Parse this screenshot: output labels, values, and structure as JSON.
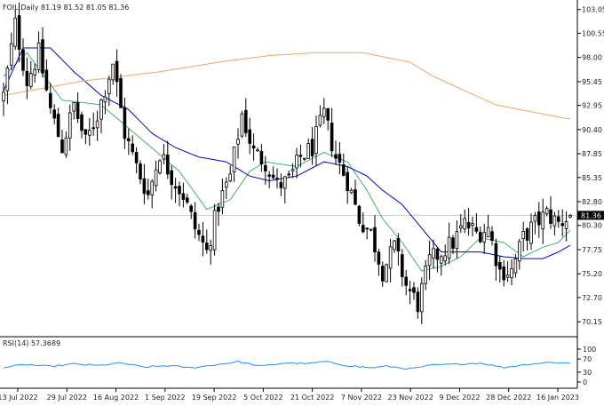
{
  "chart_data": {
    "type": "candlestick",
    "symbol": "FOIL",
    "timeframe": "Daily",
    "ohlc_header": {
      "open": "81.19",
      "high": "81.52",
      "low": "81.05",
      "close": "81.36"
    },
    "header_text": "FOIL,Daily  81.19 81.52 81.05 81.36",
    "last_price_label": "81.36",
    "price_axis": {
      "ticks": [
        "103.05",
        "100.55",
        "98.00",
        "95.45",
        "92.95",
        "90.40",
        "87.85",
        "85.35",
        "82.80",
        "80.30",
        "77.75",
        "75.20",
        "72.70",
        "70.15"
      ],
      "range": [
        69.6,
        103.4
      ]
    },
    "date_axis": {
      "ticks": [
        "13 Jul 2022",
        "29 Jul 2022",
        "16 Aug 2022",
        "1 Sep 2022",
        "19 Sep 2022",
        "5 Oct 2022",
        "21 Oct 2022",
        "7 Nov 2022",
        "23 Nov 2022",
        "9 Dec 2022",
        "28 Dec 2022",
        "16 Jan 2023"
      ]
    },
    "price_anchors": [
      [
        0,
        94.0
      ],
      [
        3,
        101.5
      ],
      [
        6,
        95.5
      ],
      [
        9,
        98.5
      ],
      [
        12,
        92.5
      ],
      [
        15,
        88.5
      ],
      [
        18,
        93.0
      ],
      [
        21,
        89.0
      ],
      [
        24,
        92.0
      ],
      [
        28,
        97.5
      ],
      [
        31,
        90.0
      ],
      [
        34,
        86.5
      ],
      [
        37,
        83.5
      ],
      [
        40,
        88.0
      ],
      [
        43,
        85.5
      ],
      [
        46,
        83.5
      ],
      [
        49,
        80.0
      ],
      [
        52,
        77.5
      ],
      [
        55,
        82.5
      ],
      [
        58,
        85.5
      ],
      [
        61,
        92.0
      ],
      [
        64,
        88.0
      ],
      [
        67,
        87.0
      ],
      [
        70,
        84.5
      ],
      [
        73,
        85.0
      ],
      [
        76,
        87.5
      ],
      [
        79,
        88.5
      ],
      [
        82,
        92.0
      ],
      [
        85,
        87.5
      ],
      [
        88,
        85.0
      ],
      [
        91,
        81.0
      ],
      [
        94,
        79.5
      ],
      [
        97,
        75.5
      ],
      [
        100,
        78.0
      ],
      [
        103,
        74.0
      ],
      [
        106,
        72.0
      ],
      [
        109,
        76.5
      ],
      [
        112,
        77.5
      ],
      [
        115,
        78.5
      ],
      [
        118,
        80.5
      ],
      [
        121,
        79.5
      ],
      [
        124,
        80.0
      ],
      [
        127,
        75.5
      ],
      [
        130,
        75.5
      ],
      [
        133,
        79.0
      ],
      [
        136,
        80.5
      ],
      [
        139,
        81.5
      ],
      [
        142,
        80.5
      ],
      [
        145,
        81.36
      ]
    ],
    "series": [
      {
        "name": "",
        "type": "ma",
        "period": 9,
        "points": [
          [
            0,
            96.0
          ],
          [
            6,
            98.5
          ],
          [
            15,
            93.5
          ],
          [
            25,
            93.0
          ],
          [
            35,
            89.5
          ],
          [
            45,
            86.0
          ],
          [
            52,
            82.0
          ],
          [
            58,
            83.0
          ],
          [
            63,
            86.0
          ],
          [
            67,
            87.0
          ],
          [
            75,
            86.5
          ],
          [
            82,
            88.0
          ],
          [
            88,
            87.0
          ],
          [
            93,
            84.0
          ],
          [
            97,
            81.0
          ],
          [
            102,
            78.5
          ],
          [
            107,
            75.5
          ],
          [
            112,
            76.0
          ],
          [
            117,
            77.0
          ],
          [
            122,
            79.0
          ],
          [
            128,
            78.5
          ],
          [
            133,
            77.0
          ],
          [
            138,
            78.0
          ],
          [
            142,
            78.5
          ],
          [
            145,
            79.8
          ]
        ]
      },
      {
        "name": "",
        "type": "ma",
        "period": 20,
        "points": [
          [
            0,
            94.5
          ],
          [
            5,
            99.0
          ],
          [
            12,
            99.0
          ],
          [
            18,
            96.5
          ],
          [
            25,
            94.0
          ],
          [
            32,
            92.5
          ],
          [
            38,
            90.0
          ],
          [
            44,
            88.5
          ],
          [
            50,
            87.5
          ],
          [
            57,
            87.0
          ],
          [
            63,
            85.5
          ],
          [
            68,
            85.0
          ],
          [
            75,
            85.5
          ],
          [
            82,
            87.0
          ],
          [
            88,
            86.5
          ],
          [
            93,
            85.5
          ],
          [
            97,
            84.0
          ],
          [
            102,
            82.5
          ],
          [
            107,
            80.0
          ],
          [
            112,
            77.5
          ],
          [
            117,
            77.5
          ],
          [
            122,
            77.5
          ],
          [
            128,
            77.0
          ],
          [
            133,
            76.8
          ],
          [
            138,
            76.8
          ],
          [
            142,
            77.5
          ],
          [
            145,
            78.2
          ]
        ]
      },
      {
        "name": "",
        "type": "ma",
        "period": 200,
        "points": [
          [
            0,
            94.0
          ],
          [
            20,
            95.5
          ],
          [
            40,
            96.5
          ],
          [
            55,
            97.5
          ],
          [
            68,
            98.2
          ],
          [
            80,
            98.5
          ],
          [
            92,
            98.5
          ],
          [
            98,
            98.0
          ],
          [
            104,
            97.5
          ],
          [
            110,
            96.0
          ],
          [
            118,
            94.5
          ],
          [
            126,
            93.0
          ],
          [
            136,
            92.2
          ],
          [
            145,
            91.5
          ]
        ]
      }
    ],
    "colors": {
      "ma9": "#3cb371",
      "ma20": "#0000cd",
      "ma200": "#f4a460",
      "rsi": "#1e90ff",
      "bull": "#ffffff",
      "bear": "#000000"
    },
    "rsi": {
      "label": "RSI(14) 57.3689",
      "period": 14,
      "value": 57.3689,
      "range": [
        0,
        100
      ],
      "ticks": [
        "100",
        "70",
        "30",
        "0"
      ],
      "points": [
        [
          0,
          45
        ],
        [
          6,
          53
        ],
        [
          12,
          47
        ],
        [
          18,
          55
        ],
        [
          24,
          50
        ],
        [
          30,
          58
        ],
        [
          36,
          45
        ],
        [
          42,
          50
        ],
        [
          48,
          43
        ],
        [
          54,
          52
        ],
        [
          60,
          62
        ],
        [
          66,
          48
        ],
        [
          72,
          58
        ],
        [
          78,
          56
        ],
        [
          82,
          62
        ],
        [
          88,
          50
        ],
        [
          94,
          43
        ],
        [
          98,
          48
        ],
        [
          104,
          40
        ],
        [
          110,
          52
        ],
        [
          116,
          54
        ],
        [
          122,
          58
        ],
        [
          128,
          44
        ],
        [
          134,
          54
        ],
        [
          140,
          60
        ],
        [
          145,
          57
        ]
      ]
    }
  }
}
